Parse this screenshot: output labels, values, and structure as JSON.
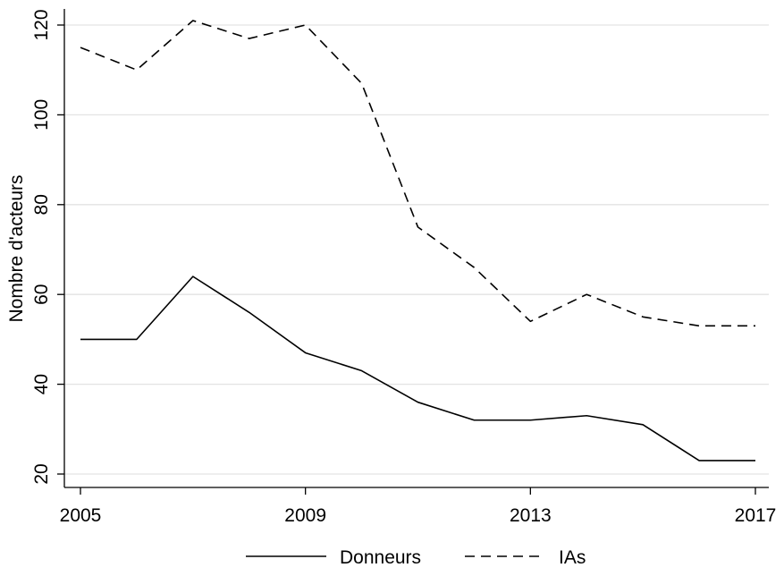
{
  "chart_data": {
    "type": "line",
    "title": "",
    "xlabel": "",
    "ylabel": "Nombre d'acteurs",
    "x": [
      2005,
      2006,
      2007,
      2008,
      2009,
      2010,
      2011,
      2012,
      2013,
      2014,
      2015,
      2016,
      2017
    ],
    "xticks": [
      2005,
      2009,
      2013,
      2017
    ],
    "yticks": [
      20,
      40,
      60,
      80,
      100,
      120
    ],
    "xlim": [
      2005,
      2017
    ],
    "ylim": [
      18,
      124
    ],
    "grid": true,
    "legend_position": "bottom",
    "series": [
      {
        "name": "Donneurs",
        "line_style": "solid",
        "values": [
          50,
          50,
          64,
          56,
          47,
          43,
          36,
          32,
          32,
          33,
          31,
          23,
          23
        ]
      },
      {
        "name": "IAs",
        "line_style": "dashed",
        "values": [
          115,
          110,
          121,
          117,
          120,
          107,
          75,
          66,
          54,
          60,
          55,
          53,
          53
        ]
      }
    ]
  }
}
